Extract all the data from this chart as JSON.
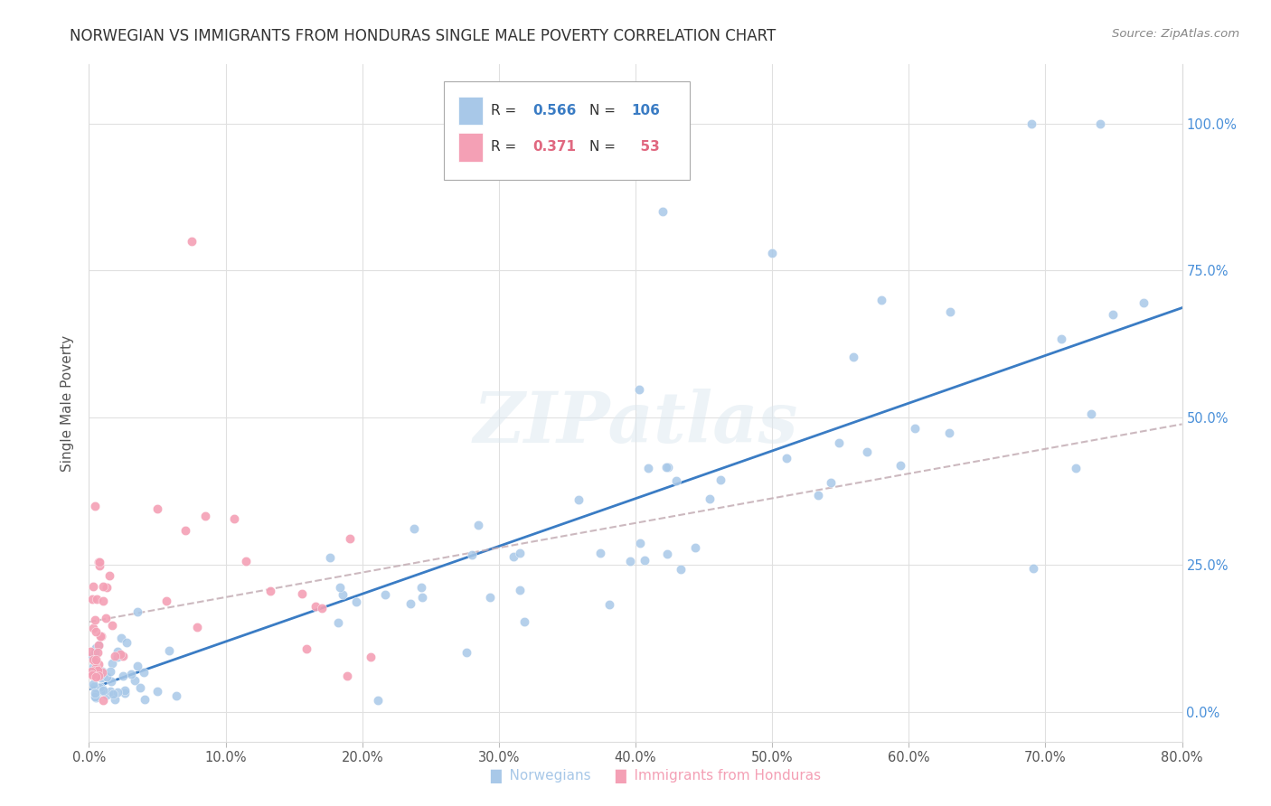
{
  "title": "NORWEGIAN VS IMMIGRANTS FROM HONDURAS SINGLE MALE POVERTY CORRELATION CHART",
  "source": "Source: ZipAtlas.com",
  "ylabel": "Single Male Poverty",
  "xlim": [
    0.0,
    0.8
  ],
  "ylim": [
    -0.05,
    1.1
  ],
  "x_tick_vals": [
    0.0,
    0.1,
    0.2,
    0.3,
    0.4,
    0.5,
    0.6,
    0.7,
    0.8
  ],
  "y_tick_vals": [
    0.0,
    0.25,
    0.5,
    0.75,
    1.0
  ],
  "norwegian_R": 0.566,
  "norwegian_N": 106,
  "honduras_R": 0.371,
  "honduras_N": 53,
  "norwegian_color": "#a8c8e8",
  "norwegian_line_color": "#3a7cc4",
  "honduras_color": "#f4a0b5",
  "honduras_line_color": "#e06880",
  "honduras_dash_color": "#c8b0b8",
  "watermark": "ZIPatlas"
}
